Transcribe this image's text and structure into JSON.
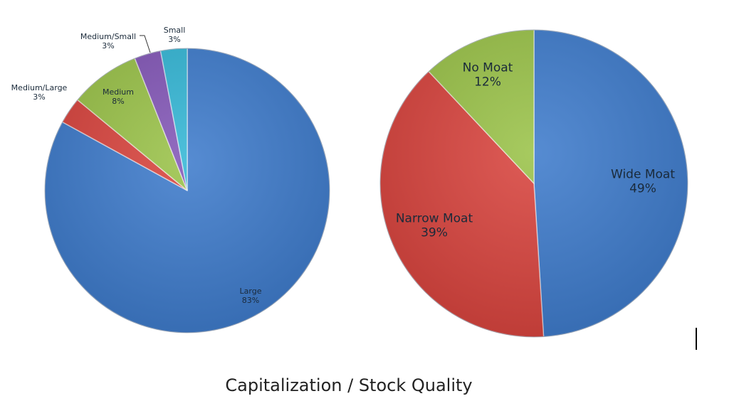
{
  "title": "Capitalization / Stock Quality",
  "chart_data": [
    {
      "type": "pie",
      "title": "Capitalization",
      "categories": [
        "Large",
        "Medium/Large",
        "Medium",
        "Medium/Small",
        "Small"
      ],
      "values": [
        83,
        3,
        8,
        3,
        3
      ],
      "labels": [
        "83%",
        "3%",
        "8%",
        "3%",
        "3%"
      ],
      "colors": [
        "#3f7ccc",
        "#d9453f",
        "#9bc34a",
        "#8458b8",
        "#35b7d6"
      ],
      "start_angle": "12 o'clock, clockwise"
    },
    {
      "type": "pie",
      "title": "Stock Quality",
      "categories": [
        "Wide Moat",
        "Narrow Moat",
        "No Moat"
      ],
      "values": [
        49,
        39,
        12
      ],
      "labels": [
        "49%",
        "39%",
        "12%"
      ],
      "colors": [
        "#3f7ccc",
        "#d9453f",
        "#9bc34a"
      ],
      "start_angle": "12 o'clock, clockwise"
    }
  ],
  "left_labels": {
    "large": {
      "name": "Large",
      "pct": "83%"
    },
    "medium_large": {
      "name": "Medium/Large",
      "pct": "3%"
    },
    "medium": {
      "name": "Medium",
      "pct": "8%"
    },
    "medium_small": {
      "name": "Medium/Small",
      "pct": "3%"
    },
    "small": {
      "name": "Small",
      "pct": "3%"
    }
  },
  "right_labels": {
    "wide": {
      "name": "Wide Moat",
      "pct": "49%"
    },
    "narrow": {
      "name": "Narrow Moat",
      "pct": "39%"
    },
    "no": {
      "name": "No Moat",
      "pct": "12%"
    }
  }
}
